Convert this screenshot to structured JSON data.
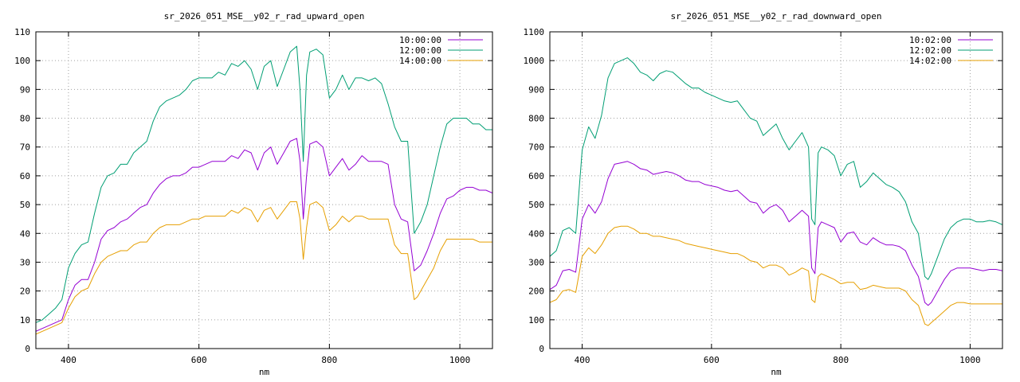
{
  "chart_data": [
    {
      "type": "line",
      "title": "sr_2026_051_MSE__y02_r_rad_upward_open",
      "xlabel": "nm",
      "ylabel": "",
      "xlim": [
        350,
        1050
      ],
      "ylim": [
        0,
        110
      ],
      "grid": true,
      "legend_position": "top-right",
      "x_ticks": [
        400,
        600,
        800,
        1000
      ],
      "y_ticks": [
        0,
        10,
        20,
        30,
        40,
        50,
        60,
        70,
        80,
        90,
        100,
        110
      ],
      "series": [
        {
          "name": "10:00:00",
          "color": "#9400d3",
          "x": [
            350,
            360,
            370,
            380,
            390,
            400,
            410,
            420,
            430,
            440,
            450,
            460,
            470,
            480,
            490,
            500,
            510,
            520,
            530,
            540,
            550,
            560,
            570,
            580,
            590,
            600,
            610,
            620,
            630,
            640,
            650,
            660,
            670,
            680,
            690,
            700,
            710,
            720,
            730,
            740,
            750,
            755,
            760,
            765,
            770,
            780,
            790,
            800,
            810,
            820,
            830,
            840,
            850,
            860,
            870,
            880,
            890,
            900,
            910,
            920,
            930,
            935,
            940,
            950,
            960,
            970,
            980,
            990,
            1000,
            1010,
            1020,
            1030,
            1040,
            1050
          ],
          "y": [
            6,
            7,
            8,
            9,
            10,
            17,
            22,
            24,
            24,
            30,
            38,
            41,
            42,
            44,
            45,
            47,
            49,
            50,
            54,
            57,
            59,
            60,
            60,
            61,
            63,
            63,
            64,
            65,
            65,
            65,
            67,
            66,
            69,
            68,
            62,
            68,
            70,
            64,
            68,
            72,
            73,
            65,
            45,
            60,
            71,
            72,
            70,
            60,
            63,
            66,
            62,
            64,
            67,
            65,
            65,
            65,
            64,
            50,
            45,
            44,
            27,
            28,
            29,
            34,
            40,
            47,
            52,
            53,
            55,
            56,
            56,
            55,
            55,
            54
          ]
        },
        {
          "name": "12:00:00",
          "color": "#009e73",
          "x": [
            350,
            360,
            370,
            380,
            390,
            400,
            410,
            420,
            430,
            440,
            450,
            460,
            470,
            480,
            490,
            500,
            510,
            520,
            530,
            540,
            550,
            560,
            570,
            580,
            590,
            600,
            610,
            620,
            630,
            640,
            650,
            660,
            670,
            680,
            690,
            700,
            710,
            720,
            730,
            740,
            750,
            755,
            760,
            765,
            770,
            780,
            790,
            800,
            810,
            820,
            830,
            840,
            850,
            860,
            870,
            880,
            890,
            900,
            910,
            920,
            930,
            935,
            940,
            950,
            960,
            970,
            980,
            990,
            1000,
            1010,
            1020,
            1030,
            1040,
            1050
          ],
          "y": [
            9,
            10,
            12,
            14,
            17,
            28,
            33,
            36,
            37,
            47,
            56,
            60,
            61,
            64,
            64,
            68,
            70,
            72,
            79,
            84,
            86,
            87,
            88,
            90,
            93,
            94,
            94,
            94,
            96,
            95,
            99,
            98,
            100,
            97,
            90,
            98,
            100,
            91,
            97,
            103,
            105,
            90,
            65,
            95,
            103,
            104,
            102,
            87,
            90,
            95,
            90,
            94,
            94,
            93,
            94,
            92,
            85,
            77,
            72,
            72,
            40,
            42,
            44,
            50,
            60,
            70,
            78,
            80,
            80,
            80,
            78,
            78,
            76,
            76
          ]
        },
        {
          "name": "14:00:00",
          "color": "#e69f00",
          "x": [
            350,
            360,
            370,
            380,
            390,
            400,
            410,
            420,
            430,
            440,
            450,
            460,
            470,
            480,
            490,
            500,
            510,
            520,
            530,
            540,
            550,
            560,
            570,
            580,
            590,
            600,
            610,
            620,
            630,
            640,
            650,
            660,
            670,
            680,
            690,
            700,
            710,
            720,
            730,
            740,
            750,
            755,
            760,
            765,
            770,
            780,
            790,
            800,
            810,
            820,
            830,
            840,
            850,
            860,
            870,
            880,
            890,
            900,
            910,
            920,
            930,
            935,
            940,
            950,
            960,
            970,
            980,
            990,
            1000,
            1010,
            1020,
            1030,
            1040,
            1050
          ],
          "y": [
            5,
            6,
            7,
            8,
            9,
            14,
            18,
            20,
            21,
            26,
            30,
            32,
            33,
            34,
            34,
            36,
            37,
            37,
            40,
            42,
            43,
            43,
            43,
            44,
            45,
            45,
            46,
            46,
            46,
            46,
            48,
            47,
            49,
            48,
            44,
            48,
            49,
            45,
            48,
            51,
            51,
            45,
            31,
            42,
            50,
            51,
            49,
            41,
            43,
            46,
            44,
            46,
            46,
            45,
            45,
            45,
            45,
            36,
            33,
            33,
            17,
            18,
            20,
            24,
            28,
            34,
            38,
            38,
            38,
            38,
            38,
            37,
            37,
            37
          ]
        }
      ]
    },
    {
      "type": "line",
      "title": "sr_2026_051_MSE__y02_r_rad_downward_open",
      "xlabel": "nm",
      "ylabel": "",
      "xlim": [
        350,
        1050
      ],
      "ylim": [
        0,
        1100
      ],
      "grid": true,
      "legend_position": "top-right",
      "x_ticks": [
        400,
        600,
        800,
        1000
      ],
      "y_ticks": [
        0,
        100,
        200,
        300,
        400,
        500,
        600,
        700,
        800,
        900,
        1000,
        1100
      ],
      "series": [
        {
          "name": "10:02:00",
          "color": "#9400d3",
          "x": [
            350,
            360,
            370,
            380,
            390,
            400,
            410,
            420,
            430,
            440,
            450,
            460,
            470,
            480,
            490,
            500,
            510,
            520,
            530,
            540,
            550,
            560,
            570,
            580,
            590,
            600,
            610,
            620,
            630,
            640,
            650,
            660,
            670,
            680,
            690,
            700,
            710,
            720,
            730,
            740,
            750,
            755,
            760,
            765,
            770,
            780,
            790,
            800,
            810,
            820,
            830,
            840,
            850,
            860,
            870,
            880,
            890,
            900,
            910,
            920,
            930,
            935,
            940,
            950,
            960,
            970,
            980,
            990,
            1000,
            1010,
            1020,
            1030,
            1040,
            1050
          ],
          "y": [
            205,
            220,
            270,
            275,
            265,
            450,
            500,
            470,
            510,
            590,
            640,
            645,
            650,
            640,
            625,
            620,
            605,
            610,
            615,
            610,
            600,
            585,
            580,
            580,
            570,
            565,
            560,
            550,
            545,
            550,
            530,
            510,
            505,
            470,
            490,
            500,
            480,
            440,
            460,
            480,
            460,
            280,
            260,
            420,
            440,
            430,
            420,
            370,
            400,
            405,
            370,
            360,
            385,
            370,
            360,
            360,
            355,
            340,
            290,
            250,
            160,
            150,
            160,
            200,
            240,
            270,
            280,
            280,
            280,
            275,
            270,
            275,
            275,
            270
          ]
        },
        {
          "name": "12:02:00",
          "color": "#009e73",
          "x": [
            350,
            360,
            370,
            380,
            390,
            400,
            410,
            420,
            430,
            440,
            450,
            460,
            470,
            480,
            490,
            500,
            510,
            520,
            530,
            540,
            550,
            560,
            570,
            580,
            590,
            600,
            610,
            620,
            630,
            640,
            650,
            660,
            670,
            680,
            690,
            700,
            710,
            720,
            730,
            740,
            750,
            755,
            760,
            765,
            770,
            780,
            790,
            800,
            810,
            820,
            830,
            840,
            850,
            860,
            870,
            880,
            890,
            900,
            910,
            920,
            930,
            935,
            940,
            950,
            960,
            970,
            980,
            990,
            1000,
            1010,
            1020,
            1030,
            1040,
            1050
          ],
          "y": [
            320,
            340,
            410,
            420,
            400,
            690,
            770,
            730,
            810,
            940,
            990,
            1000,
            1010,
            990,
            960,
            950,
            930,
            955,
            965,
            960,
            940,
            920,
            905,
            905,
            890,
            880,
            870,
            860,
            855,
            860,
            830,
            800,
            790,
            740,
            760,
            780,
            730,
            690,
            720,
            750,
            700,
            450,
            430,
            680,
            700,
            690,
            670,
            600,
            640,
            650,
            560,
            580,
            610,
            590,
            570,
            560,
            545,
            510,
            440,
            400,
            250,
            240,
            260,
            320,
            380,
            420,
            440,
            450,
            450,
            440,
            440,
            445,
            440,
            430
          ]
        },
        {
          "name": "14:02:00",
          "color": "#e69f00",
          "x": [
            350,
            360,
            370,
            380,
            390,
            400,
            410,
            420,
            430,
            440,
            450,
            460,
            470,
            480,
            490,
            500,
            510,
            520,
            530,
            540,
            550,
            560,
            570,
            580,
            590,
            600,
            610,
            620,
            630,
            640,
            650,
            660,
            670,
            680,
            690,
            700,
            710,
            720,
            730,
            740,
            750,
            755,
            760,
            765,
            770,
            780,
            790,
            800,
            810,
            820,
            830,
            840,
            850,
            860,
            870,
            880,
            890,
            900,
            910,
            920,
            930,
            935,
            940,
            950,
            960,
            970,
            980,
            990,
            1000,
            1010,
            1020,
            1030,
            1040,
            1050
          ],
          "y": [
            160,
            170,
            200,
            205,
            195,
            320,
            350,
            330,
            360,
            400,
            420,
            425,
            425,
            415,
            400,
            400,
            390,
            390,
            385,
            380,
            375,
            365,
            360,
            355,
            350,
            345,
            340,
            335,
            330,
            330,
            320,
            305,
            300,
            280,
            290,
            290,
            280,
            255,
            265,
            280,
            270,
            170,
            160,
            250,
            260,
            250,
            240,
            225,
            230,
            230,
            205,
            210,
            220,
            215,
            210,
            210,
            210,
            200,
            170,
            150,
            85,
            80,
            90,
            110,
            130,
            150,
            160,
            160,
            155,
            155,
            155,
            155,
            155,
            155
          ]
        }
      ]
    }
  ]
}
